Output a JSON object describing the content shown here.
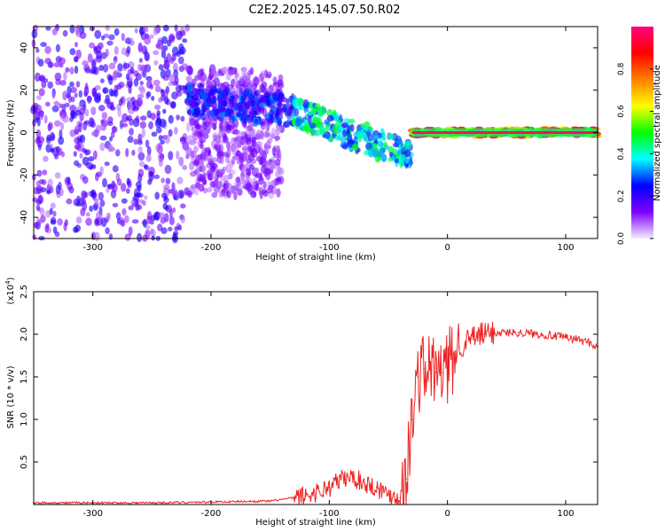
{
  "title": "C2E2.2025.145.07.50.R02",
  "chart_data": [
    {
      "type": "heatmap",
      "xlabel": "Height of straight line (km)",
      "ylabel": "Frequency (Hz)",
      "xlim": [
        -350,
        127
      ],
      "ylim": [
        -50,
        50
      ],
      "x_ticks": [
        -300,
        -200,
        -100,
        0,
        100
      ],
      "y_ticks": [
        -40,
        -20,
        0,
        20,
        40
      ],
      "x_tick_labels": [
        "-300",
        "-200",
        "-100",
        "0",
        "100"
      ],
      "y_tick_labels": [
        "-40",
        "-20",
        "0",
        "20",
        "40"
      ],
      "colorbar": {
        "label": "Normalized spectral amplitude",
        "range": [
          0,
          1
        ],
        "ticks": [
          0.0,
          0.2,
          0.4,
          0.6,
          0.8
        ],
        "tick_labels": [
          "0.0",
          "0.2",
          "0.4",
          "0.6",
          "0.8"
        ],
        "colors": [
          "#f4ecff",
          "#7f00ff",
          "#0000ff",
          "#00ffff",
          "#00ff00",
          "#ffff00",
          "#ff8000",
          "#ff0000",
          "#ff0080"
        ]
      },
      "regions": [
        {
          "x": [
            -350,
            -220
          ],
          "freq_spread": 50,
          "amplitude": 0.15
        },
        {
          "x": [
            -220,
            -140
          ],
          "freq_spread": 30,
          "amplitude": 0.1
        },
        {
          "x": [
            -220,
            -130
          ],
          "freq_center": [
            15,
            10
          ],
          "amplitude": 0.3
        },
        {
          "x": [
            -130,
            -30
          ],
          "freq_center": [
            10,
            -12
          ],
          "amplitude": 0.45
        },
        {
          "x": [
            -30,
            127
          ],
          "freq_center": [
            0,
            0
          ],
          "amplitude": 0.95
        }
      ]
    },
    {
      "type": "line",
      "xlabel": "Height of straight line (km)",
      "ylabel": "SNR (10 * v/v)",
      "y_scale_label": "(x10",
      "y_scale_exp": "4",
      "xlim": [
        -350,
        127
      ],
      "ylim": [
        0,
        2.5
      ],
      "x_ticks": [
        -300,
        -200,
        -100,
        0,
        100
      ],
      "y_ticks": [
        0.5,
        1.0,
        1.5,
        2.0,
        2.5
      ],
      "x_tick_labels": [
        "-300",
        "-200",
        "-100",
        "0",
        "100"
      ],
      "y_tick_labels": [
        "0.5",
        "1.0",
        "1.5",
        "2.0",
        "2.5"
      ],
      "series": [
        {
          "color": "#ee2222",
          "x": [
            -350,
            -300,
            -250,
            -200,
            -150,
            -120,
            -100,
            -90,
            -80,
            -70,
            -60,
            -50,
            -40,
            -35,
            -30,
            -25,
            -20,
            -15,
            -10,
            -5,
            0,
            10,
            20,
            30,
            40,
            50,
            60,
            70,
            80,
            90,
            95,
            100,
            110,
            120,
            127
          ],
          "y": [
            0.02,
            0.02,
            0.02,
            0.03,
            0.04,
            0.1,
            0.2,
            0.3,
            0.32,
            0.25,
            0.2,
            0.12,
            0.08,
            0.3,
            1.0,
            1.5,
            1.6,
            1.6,
            1.55,
            1.55,
            1.6,
            1.85,
            1.95,
            2.0,
            2.02,
            2.02,
            2.02,
            2.01,
            2.0,
            1.98,
            1.97,
            1.96,
            1.94,
            1.9,
            1.85
          ]
        }
      ]
    }
  ]
}
